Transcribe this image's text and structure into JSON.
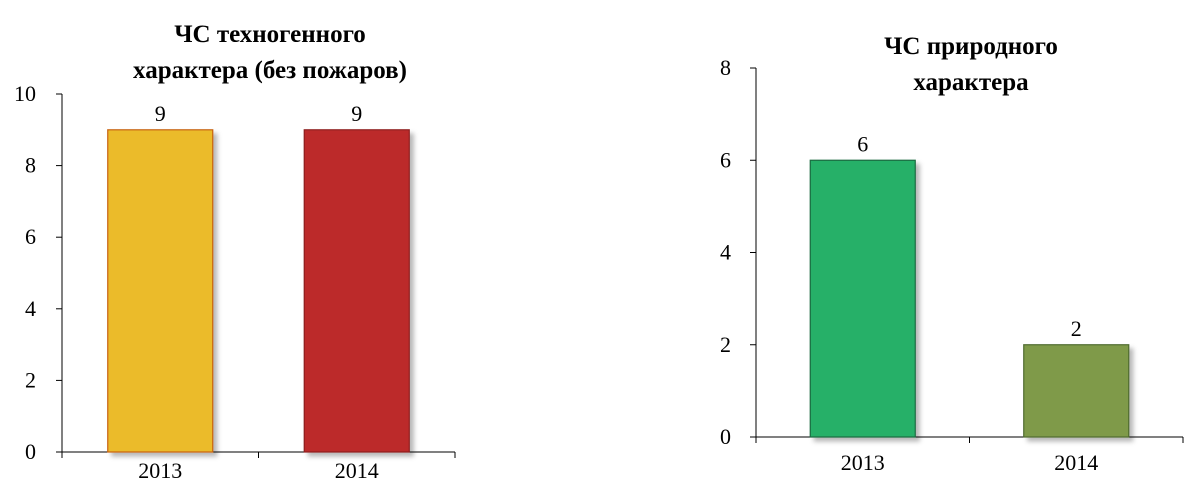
{
  "chart_data": [
    {
      "type": "bar",
      "title_lines": [
        "ЧС техногенного",
        "характера (без пожаров)"
      ],
      "categories": [
        "2013",
        "2014"
      ],
      "values": [
        9,
        9
      ],
      "data_labels": [
        "9",
        "9"
      ],
      "bar_colors": [
        "#ebbb2a",
        "#bc2a2b"
      ],
      "bar_border_colors": [
        "#c8620f",
        "#8e1f1f"
      ],
      "ylim": [
        0,
        10
      ],
      "yticks": [
        0,
        2,
        4,
        6,
        8,
        10
      ],
      "ytick_labels": [
        "0",
        "2",
        "4",
        "6",
        "8",
        "10"
      ],
      "xlabel": "",
      "ylabel": "",
      "grid": false,
      "legend": false
    },
    {
      "type": "bar",
      "title_lines": [
        "ЧС природного",
        "характера"
      ],
      "categories": [
        "2013",
        "2014"
      ],
      "values": [
        6,
        2
      ],
      "data_labels": [
        "6",
        "2"
      ],
      "bar_colors": [
        "#27b068",
        "#7f9a4a"
      ],
      "bar_border_colors": [
        "#1c6b3f",
        "#4f6b2f"
      ],
      "ylim": [
        0,
        8
      ],
      "yticks": [
        0,
        2,
        4,
        6,
        8
      ],
      "ytick_labels": [
        "0",
        "2",
        "4",
        "6",
        "8"
      ],
      "xlabel": "",
      "ylabel": "",
      "grid": false,
      "legend": false
    }
  ]
}
